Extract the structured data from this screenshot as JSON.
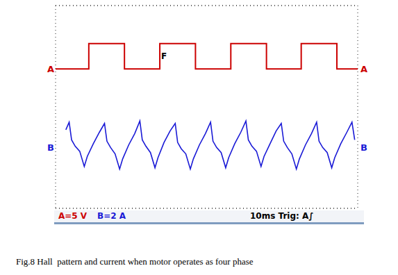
{
  "chart_data": {
    "type": "line",
    "caption": "Fig.8 Hall  pattern and current when motor operates as four phase",
    "status_bar": {
      "A": "A=5 V",
      "B": "B=2 A",
      "timebase": "10ms Trig: A∫"
    },
    "annotations": [
      {
        "text": "F",
        "x": 34.5,
        "y": 2.5
      }
    ],
    "grid": true,
    "tick_labels": false,
    "xlim": [
      0,
      100
    ],
    "xticks": [
      0,
      10,
      20,
      30,
      40,
      50,
      60,
      70,
      80,
      90,
      100
    ],
    "ylim": [
      -27.5,
      12.5
    ],
    "yticks": [
      -27.5,
      -22.5,
      -17.5,
      -12.5,
      -7.5,
      -2.5,
      2.5,
      7.5,
      12.5
    ],
    "y2lim": [
      -4.8,
      11.2
    ],
    "y2ticks": [
      -4.8,
      -2.8,
      -0.8,
      1.2,
      3.2,
      5.2,
      7.2,
      9.2,
      11.2
    ],
    "series": [
      {
        "name": "A",
        "color": "#cc0000",
        "x": [
          0,
          11,
          11,
          22.8,
          22.8,
          34.5,
          34.5,
          46.3,
          46.3,
          58,
          58,
          69.8,
          69.8,
          81.3,
          81.3,
          93.1,
          93.1,
          100
        ],
        "values": [
          0,
          0,
          5,
          5,
          0,
          0,
          5,
          5,
          0,
          0,
          5,
          5,
          0,
          0,
          5,
          5,
          0,
          0
        ]
      },
      {
        "name": "B",
        "color": "#1a1ad6",
        "axis": "y2",
        "x": [
          3.4,
          4.5,
          5.3,
          6.5,
          8,
          9.5,
          10.5,
          12.5,
          14.5,
          16.2,
          17,
          18.2,
          19.7,
          21.2,
          22.2,
          24.2,
          26.2,
          27.9,
          28.7,
          29.9,
          31.4,
          32.9,
          33.9,
          35.9,
          37.9,
          39.6,
          40.4,
          41.6,
          43.1,
          44.6,
          45.6,
          47.6,
          49.6,
          51.3,
          52.1,
          53.3,
          54.8,
          56.3,
          57.3,
          59.3,
          61.3,
          63,
          63.8,
          65,
          66.5,
          68,
          69,
          71,
          73,
          74.7,
          75.5,
          76.7,
          78.2,
          79.7,
          80.7,
          82.7,
          84.7,
          86.4,
          87.2,
          88.4,
          89.9,
          91.4,
          92.4,
          94.4,
          96.4,
          98.1,
          99
        ],
        "values": [
          1.4,
          2.0,
          0.6,
          0.1,
          -0.3,
          -1.5,
          -0.7,
          0.3,
          1.2,
          1.9,
          0.5,
          0.0,
          -0.5,
          -1.7,
          -0.9,
          0.2,
          1.1,
          2.1,
          0.6,
          0.1,
          -0.4,
          -1.6,
          -0.8,
          0.4,
          1.3,
          1.9,
          0.4,
          -0.1,
          -0.5,
          -1.7,
          -0.9,
          0.2,
          1.1,
          2.0,
          0.5,
          0.0,
          -0.4,
          -1.6,
          -0.8,
          0.3,
          1.2,
          2.1,
          0.6,
          0.1,
          -0.3,
          -1.5,
          -0.7,
          0.3,
          1.3,
          1.9,
          0.5,
          0.0,
          -0.5,
          -1.7,
          -0.9,
          0.2,
          1.1,
          2.0,
          0.5,
          0.0,
          -0.4,
          -1.6,
          -0.8,
          0.3,
          1.2,
          2.0,
          0.6
        ]
      }
    ]
  }
}
